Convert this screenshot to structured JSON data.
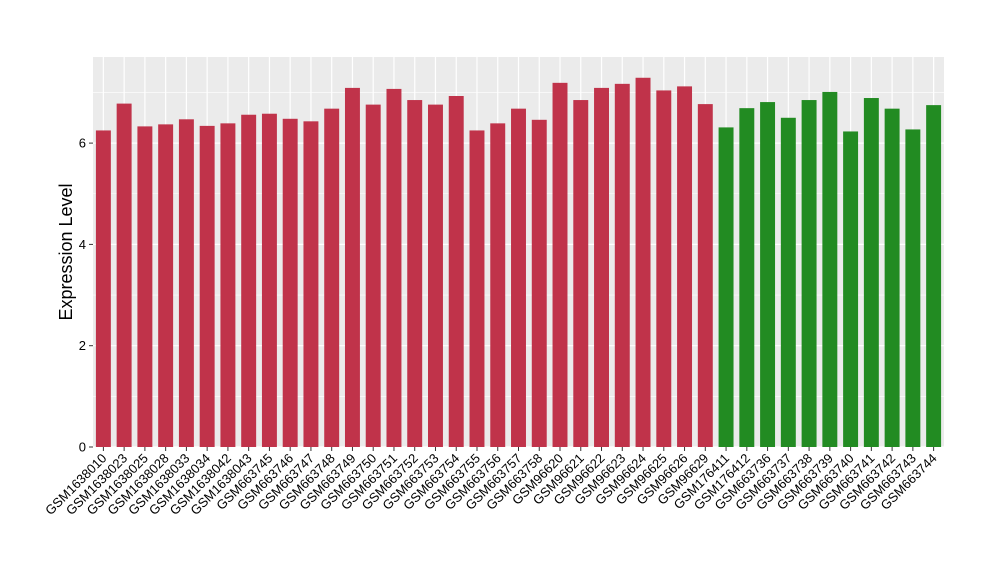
{
  "chart_data": {
    "type": "bar",
    "ylabel": "Expression Level",
    "xlabel": "",
    "ylim": [
      0,
      7.7
    ],
    "yticks": [
      0,
      2,
      4,
      6
    ],
    "grid": true,
    "background": "#ebebeb",
    "grid_color": "#ffffff",
    "colors": {
      "group1": "#c0334a",
      "group2": "#228b22"
    },
    "categories": [
      "GSM1638010",
      "GSM1638023",
      "GSM1638025",
      "GSM1638028",
      "GSM1638033",
      "GSM1638034",
      "GSM1638042",
      "GSM1638043",
      "GSM663745",
      "GSM663746",
      "GSM663747",
      "GSM663748",
      "GSM663749",
      "GSM663750",
      "GSM663751",
      "GSM663752",
      "GSM663753",
      "GSM663754",
      "GSM663755",
      "GSM663756",
      "GSM663757",
      "GSM663758",
      "GSM96620",
      "GSM96621",
      "GSM96622",
      "GSM96623",
      "GSM96624",
      "GSM96625",
      "GSM96626",
      "GSM96629",
      "GSM176411",
      "GSM176412",
      "GSM663736",
      "GSM663737",
      "GSM663738",
      "GSM663739",
      "GSM663740",
      "GSM663741",
      "GSM663742",
      "GSM663743",
      "GSM663744"
    ],
    "values": [
      6.25,
      6.78,
      6.33,
      6.37,
      6.47,
      6.34,
      6.39,
      6.56,
      6.58,
      6.48,
      6.43,
      6.68,
      7.09,
      6.76,
      7.07,
      6.85,
      6.76,
      6.93,
      6.25,
      6.39,
      6.68,
      6.46,
      7.19,
      6.85,
      7.09,
      7.17,
      7.29,
      7.04,
      7.12,
      6.77,
      6.31,
      6.69,
      6.81,
      6.5,
      6.85,
      7.01,
      6.23,
      6.89,
      6.68,
      6.27,
      6.75
    ],
    "groups": [
      "group1",
      "group1",
      "group1",
      "group1",
      "group1",
      "group1",
      "group1",
      "group1",
      "group1",
      "group1",
      "group1",
      "group1",
      "group1",
      "group1",
      "group1",
      "group1",
      "group1",
      "group1",
      "group1",
      "group1",
      "group1",
      "group1",
      "group1",
      "group1",
      "group1",
      "group1",
      "group1",
      "group1",
      "group1",
      "group1",
      "group2",
      "group2",
      "group2",
      "group2",
      "group2",
      "group2",
      "group2",
      "group2",
      "group2",
      "group2",
      "group2"
    ]
  }
}
